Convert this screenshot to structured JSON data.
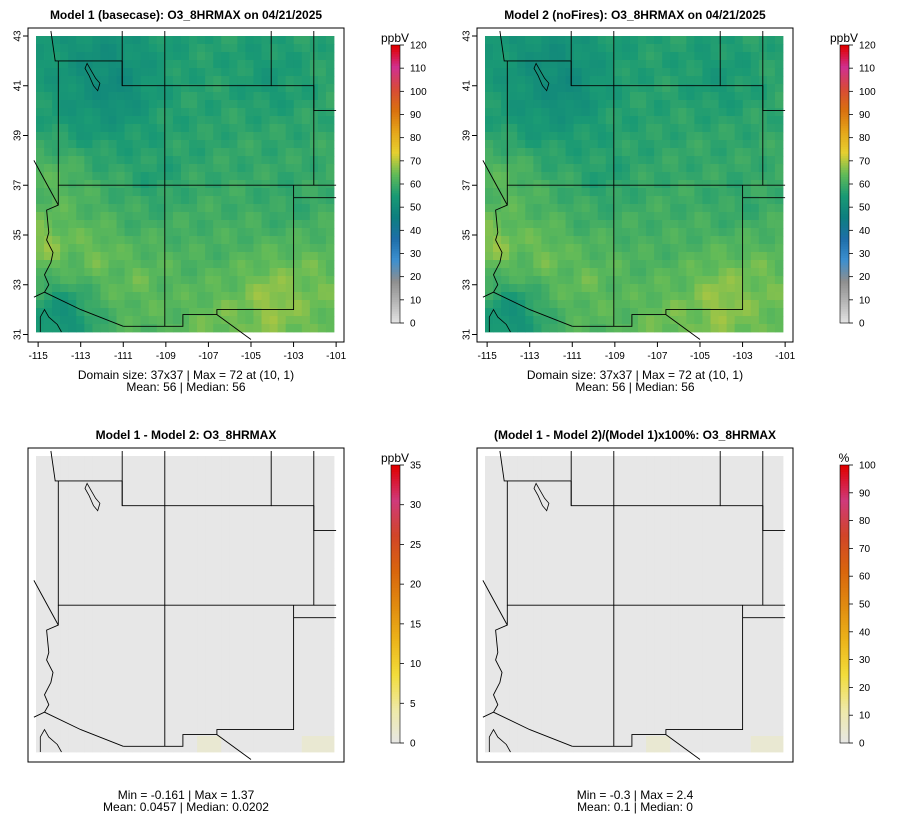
{
  "panels": [
    {
      "id": "p1",
      "title": "Model 1 (basecase): O3_8HRMAX on 04/21/2025",
      "stats_line1": "Domain size: 37x37 | Max = 72 at (10, 1)",
      "stats_line2": "Mean: 56 |  Median: 56",
      "unit": "ppbV",
      "scale_ticks": [
        "0",
        "10",
        "20",
        "30",
        "40",
        "50",
        "60",
        "70",
        "80",
        "90",
        "100",
        "110",
        "120"
      ],
      "x_ticks": [
        "-115",
        "-113",
        "-111",
        "-109",
        "-107",
        "-105",
        "-103",
        "-101"
      ],
      "y_ticks": [
        "31",
        "33",
        "35",
        "37",
        "39",
        "41",
        "43"
      ],
      "map_type": "concentration"
    },
    {
      "id": "p2",
      "title": "Model 2 (noFires): O3_8HRMAX on 04/21/2025",
      "stats_line1": "Domain size: 37x37 | Max = 72 at (10, 1)",
      "stats_line2": "Mean: 56 |  Median: 56",
      "unit": "ppbV",
      "scale_ticks": [
        "0",
        "10",
        "20",
        "30",
        "40",
        "50",
        "60",
        "70",
        "80",
        "90",
        "100",
        "110",
        "120"
      ],
      "x_ticks": [
        "-115",
        "-113",
        "-111",
        "-109",
        "-107",
        "-105",
        "-103",
        "-101"
      ],
      "y_ticks": [
        "31",
        "33",
        "35",
        "37",
        "39",
        "41",
        "43"
      ],
      "map_type": "concentration"
    },
    {
      "id": "p3",
      "title": "Model 1 - Model 2: O3_8HRMAX",
      "stats_line1": "Min = -0.161 | Max = 1.37",
      "stats_line2": "Mean: 0.0457 |  Median: 0.0202",
      "unit": "ppbV",
      "scale_ticks": [
        "0",
        "5",
        "10",
        "15",
        "20",
        "25",
        "30",
        "35"
      ],
      "map_type": "difference"
    },
    {
      "id": "p4",
      "title": "(Model 1 - Model 2)/(Model 1)x100%: O3_8HRMAX",
      "stats_line1": "Min = -0.3 | Max = 2.4",
      "stats_line2": "Mean: 0.1 |  Median: 0",
      "unit": "%",
      "scale_ticks": [
        "0",
        "10",
        "20",
        "30",
        "40",
        "50",
        "60",
        "70",
        "80",
        "90",
        "100"
      ],
      "map_type": "difference"
    }
  ],
  "chart_data": [
    {
      "type": "heatmap",
      "title": "Model 1 (basecase): O3_8HRMAX on 04/21/2025",
      "variable": "O3_8HRMAX",
      "date": "04/21/2025",
      "unit": "ppbV",
      "xlim": [
        -115,
        -101
      ],
      "ylim": [
        31,
        43
      ],
      "colorbar_range": [
        0,
        120
      ],
      "grid": "37x37",
      "max": 72,
      "max_location": "(10, 1)",
      "mean": 56,
      "median": 56,
      "hotspots": [
        {
          "lon": -114.6,
          "lat": 34.6,
          "value": 69
        },
        {
          "lon": -112.2,
          "lat": 34.3,
          "value": 67
        },
        {
          "lon": -110.3,
          "lat": 33.2,
          "value": 66
        },
        {
          "lon": -104.0,
          "lat": 32.4,
          "value": 70
        },
        {
          "lon": -106.5,
          "lat": 31.6,
          "value": 66
        },
        {
          "lon": -102.4,
          "lat": 33.0,
          "value": 66
        },
        {
          "lon": -114.0,
          "lat": 37.2,
          "value": 64
        },
        {
          "lon": -109.4,
          "lat": 33.9,
          "value": 63
        },
        {
          "lon": -107.2,
          "lat": 35.2,
          "value": 61
        },
        {
          "lon": -110.3,
          "lat": 35.9,
          "value": 60
        },
        {
          "lon": -111.4,
          "lat": 40.8,
          "value": 48
        },
        {
          "lon": -112.2,
          "lat": 41.4,
          "value": 50
        },
        {
          "lon": -113.8,
          "lat": 31.8,
          "value": 50
        },
        {
          "lon": -113.0,
          "lat": 40.0,
          "value": 53
        },
        {
          "lon": -104.2,
          "lat": 41.2,
          "value": 54
        },
        {
          "lon": -109.5,
          "lat": 37.2,
          "value": 55
        },
        {
          "lon": -107.4,
          "lat": 39.5,
          "value": 57
        },
        {
          "lon": -103.2,
          "lat": 36.4,
          "value": 58
        },
        {
          "lon": -105.4,
          "lat": 38.2,
          "value": 59
        }
      ]
    },
    {
      "type": "heatmap",
      "title": "Model 2 (noFires): O3_8HRMAX on 04/21/2025",
      "variable": "O3_8HRMAX",
      "date": "04/21/2025",
      "unit": "ppbV",
      "xlim": [
        -115,
        -101
      ],
      "ylim": [
        31,
        43
      ],
      "colorbar_range": [
        0,
        120
      ],
      "grid": "37x37",
      "max": 72,
      "max_location": "(10, 1)",
      "mean": 56,
      "median": 56
    },
    {
      "type": "heatmap",
      "title": "Model 1 - Model 2: O3_8HRMAX",
      "unit": "ppbV",
      "colorbar_range": [
        0,
        35
      ],
      "min": -0.161,
      "max": 1.37,
      "mean": 0.0457,
      "median": 0.0202
    },
    {
      "type": "heatmap",
      "title": "(Model 1 - Model 2)/(Model 1)x100%: O3_8HRMAX",
      "unit": "%",
      "colorbar_range": [
        0,
        100
      ],
      "min": -0.3,
      "max": 2.4,
      "mean": 0.1,
      "median": 0
    }
  ],
  "colors": {
    "ramp_concentration": [
      "#e6e6e6",
      "#b8b8b8",
      "#8e8e8e",
      "#3b8fd0",
      "#1d6ea8",
      "#0d7f7f",
      "#1a9a74",
      "#62bb58",
      "#e6d030",
      "#e5a51a",
      "#d9700f",
      "#d84a38",
      "#d03090",
      "#e00000"
    ],
    "ramp_difference": [
      "#e7e7e7",
      "#eee9a6",
      "#f2dc3a",
      "#ecb31a",
      "#e08a10",
      "#d9650d",
      "#d14528",
      "#cf3a7a",
      "#e00000"
    ]
  }
}
